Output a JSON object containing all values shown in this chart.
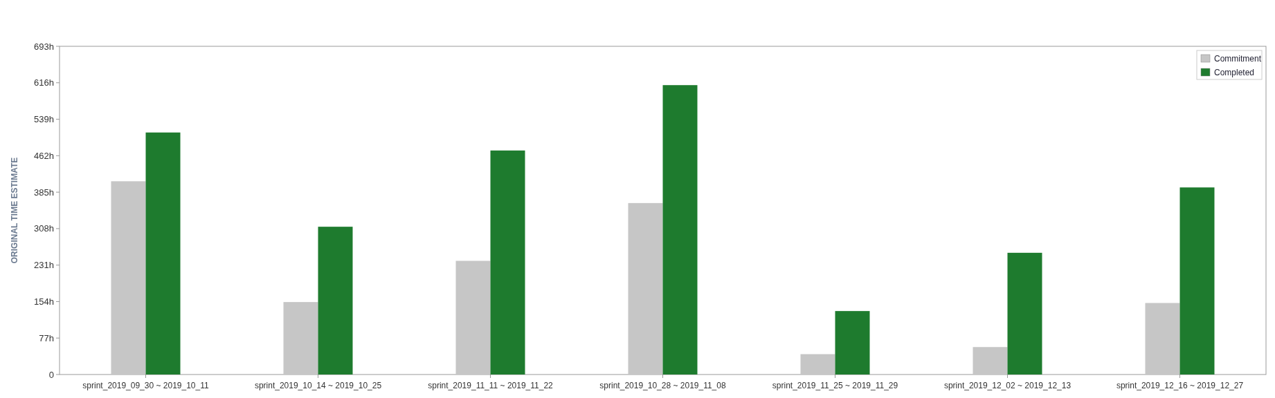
{
  "chart_data": {
    "type": "bar",
    "ylabel": "ORIGINAL TIME ESTIMATE",
    "categories": [
      "sprint_2019_09_30 ~ 2019_10_11",
      "sprint_2019_10_14 ~ 2019_10_25",
      "sprint_2019_11_11 ~ 2019_11_22",
      "sprint_2019_10_28 ~ 2019_11_08",
      "sprint_2019_11_25 ~ 2019_11_29",
      "sprint_2019_12_02 ~ 2019_12_13",
      "sprint_2019_12_16 ~ 2019_12_27"
    ],
    "series": [
      {
        "name": "Commitment",
        "color": "#c6c6c6",
        "values": [
          408,
          153,
          240,
          362,
          43,
          58,
          151
        ]
      },
      {
        "name": "Completed",
        "color": "#1e7b2e",
        "values": [
          511,
          312,
          473,
          611,
          134,
          257,
          395
        ]
      }
    ],
    "ylim": [
      0,
      693
    ],
    "yticks": [
      {
        "value": 0,
        "label": "0"
      },
      {
        "value": 77,
        "label": "77h"
      },
      {
        "value": 154,
        "label": "154h"
      },
      {
        "value": 231,
        "label": "231h"
      },
      {
        "value": 308,
        "label": "308h"
      },
      {
        "value": 385,
        "label": "385h"
      },
      {
        "value": 462,
        "label": "462h"
      },
      {
        "value": 539,
        "label": "539h"
      },
      {
        "value": 616,
        "label": "616h"
      },
      {
        "value": 693,
        "label": "693h"
      }
    ],
    "legend": "top right"
  }
}
